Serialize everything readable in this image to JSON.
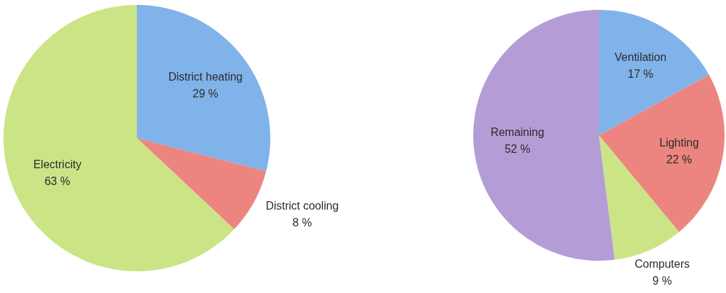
{
  "chart_data": [
    {
      "type": "pie",
      "categories": [
        "District heating",
        "District cooling",
        "Electricity"
      ],
      "values": [
        29,
        8,
        63
      ],
      "colors": [
        "#80b3ea",
        "#ec8580",
        "#cbe486"
      ],
      "value_labels": [
        "29 %",
        "8 %",
        "63 %"
      ]
    },
    {
      "type": "pie",
      "categories": [
        "Ventilation",
        "Lighting",
        "Computers",
        "Remaining"
      ],
      "values": [
        17,
        22,
        9,
        52
      ],
      "colors": [
        "#80b3ea",
        "#ec8580",
        "#cbe486",
        "#b49dd6"
      ],
      "value_labels": [
        "17 %",
        "22 %",
        "9 %",
        "52 %"
      ]
    }
  ]
}
